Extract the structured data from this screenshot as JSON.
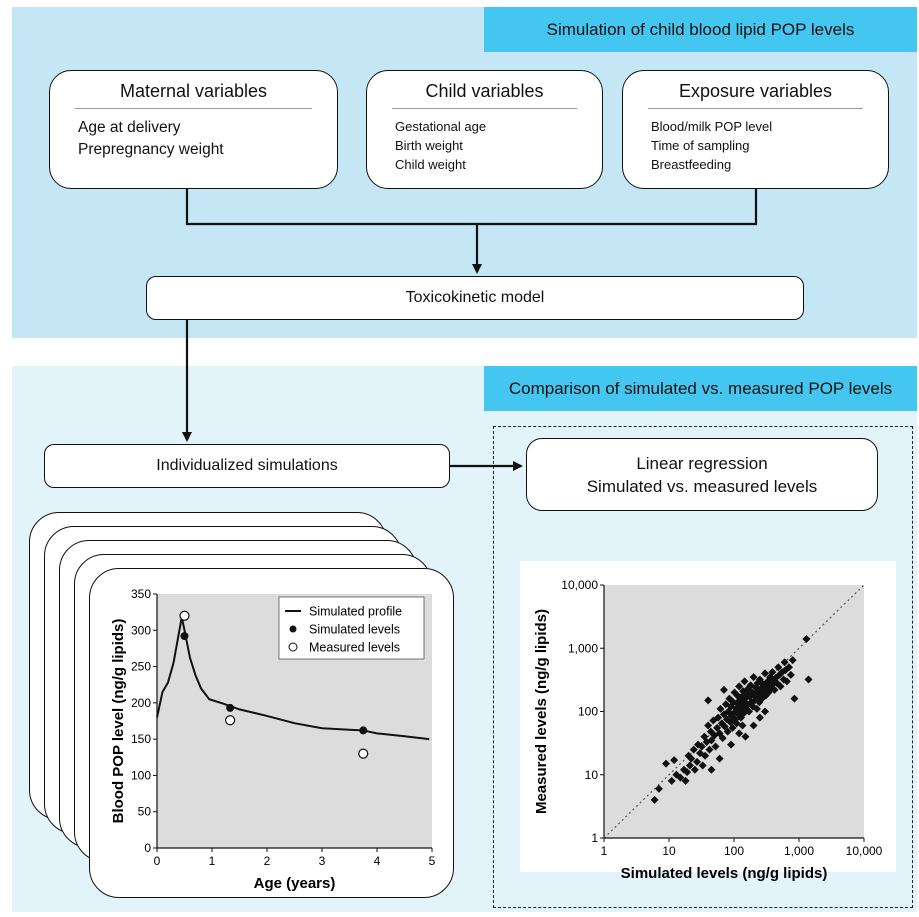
{
  "banners": {
    "top": "Simulation of child blood lipid POP levels",
    "bottom": "Comparison of simulated vs. measured POP levels"
  },
  "maternal": {
    "title": "Maternal variables",
    "items": [
      "Age at delivery",
      "Prepregnancy weight"
    ]
  },
  "child": {
    "title": "Child variables",
    "items": [
      "Gestational age",
      "Birth weight",
      "Child weight"
    ]
  },
  "exposure": {
    "title": "Exposure variables",
    "items": [
      "Blood/milk POP level",
      "Time of sampling",
      "Breastfeeding"
    ]
  },
  "toxicokinetic_label": "Toxicokinetic model",
  "individualized_label": "Individualized simulations",
  "linear_regression": {
    "line1": "Linear regression",
    "line2": "Simulated vs. measured levels"
  },
  "colors": {
    "top_panel": "#c5e6f5",
    "bottom_panel": "#e3f3fa",
    "banner": "#43c6ef",
    "plot_bg": "#dcdcdc"
  },
  "chart_data": [
    {
      "type": "line",
      "xlabel": "Age (years)",
      "ylabel": "Blood POP level (ng/g lipids)",
      "xlim": [
        0,
        5
      ],
      "ylim": [
        0,
        350
      ],
      "xticks": [
        "0",
        "1",
        "2",
        "3",
        "4",
        "5"
      ],
      "yticks": [
        "0",
        "50",
        "100",
        "150",
        "200",
        "250",
        "300",
        "350"
      ],
      "legend": {
        "placement": "top-right",
        "entries": [
          "Simulated profile",
          "Simulated levels",
          "Measured levels"
        ]
      },
      "series": [
        {
          "name": "Simulated profile",
          "x": [
            0,
            0.1,
            0.2,
            0.3,
            0.45,
            0.5,
            0.6,
            0.7,
            0.8,
            0.95,
            1.2,
            1.5,
            2.0,
            2.5,
            3.0,
            3.5,
            3.75,
            4.0,
            4.5,
            4.95
          ],
          "y": [
            180,
            215,
            228,
            255,
            318,
            300,
            262,
            238,
            220,
            205,
            199,
            191,
            182,
            172,
            165,
            163,
            162,
            158,
            154,
            150
          ]
        },
        {
          "name": "Simulated levels",
          "x": [
            0.5,
            1.33,
            3.75
          ],
          "y": [
            292,
            193,
            162
          ]
        },
        {
          "name": "Measured levels",
          "x": [
            0.5,
            1.33,
            3.75
          ],
          "y": [
            320,
            176,
            130
          ]
        }
      ]
    },
    {
      "type": "scatter",
      "xlabel": "Simulated levels (ng/g lipids)",
      "ylabel": "Measured levels (ng/g lipids)",
      "xscale": "log",
      "yscale": "log",
      "xlim": [
        1,
        10000
      ],
      "ylim": [
        1,
        10000
      ],
      "xticks": [
        "1",
        "10",
        "100",
        "1,000",
        "10,000"
      ],
      "yticks": [
        "1",
        "10",
        "100",
        "1,000",
        "10,000"
      ],
      "identity_line": true,
      "points": [
        [
          6,
          4
        ],
        [
          7,
          6
        ],
        [
          9,
          15
        ],
        [
          11,
          8
        ],
        [
          12,
          17
        ],
        [
          13,
          10
        ],
        [
          15,
          9
        ],
        [
          17,
          12
        ],
        [
          18,
          8
        ],
        [
          19,
          11
        ],
        [
          20,
          20
        ],
        [
          21,
          14
        ],
        [
          22,
          18
        ],
        [
          24,
          25
        ],
        [
          25,
          12
        ],
        [
          27,
          16
        ],
        [
          28,
          30
        ],
        [
          30,
          22
        ],
        [
          32,
          28
        ],
        [
          33,
          14
        ],
        [
          35,
          40
        ],
        [
          36,
          20
        ],
        [
          38,
          33
        ],
        [
          40,
          60
        ],
        [
          42,
          25
        ],
        [
          44,
          48
        ],
        [
          45,
          35
        ],
        [
          48,
          72
        ],
        [
          50,
          42
        ],
        [
          52,
          28
        ],
        [
          55,
          55
        ],
        [
          57,
          80
        ],
        [
          60,
          45
        ],
        [
          62,
          110
        ],
        [
          65,
          65
        ],
        [
          67,
          38
        ],
        [
          70,
          90
        ],
        [
          72,
          58
        ],
        [
          75,
          130
        ],
        [
          78,
          75
        ],
        [
          80,
          48
        ],
        [
          82,
          100
        ],
        [
          85,
          160
        ],
        [
          88,
          68
        ],
        [
          90,
          120
        ],
        [
          92,
          85
        ],
        [
          95,
          55
        ],
        [
          98,
          140
        ],
        [
          100,
          95
        ],
        [
          102,
          200
        ],
        [
          105,
          75
        ],
        [
          108,
          110
        ],
        [
          110,
          65
        ],
        [
          112,
          180
        ],
        [
          115,
          130
        ],
        [
          118,
          90
        ],
        [
          120,
          250
        ],
        [
          122,
          150
        ],
        [
          125,
          105
        ],
        [
          128,
          80
        ],
        [
          130,
          170
        ],
        [
          133,
          120
        ],
        [
          135,
          60
        ],
        [
          138,
          210
        ],
        [
          140,
          140
        ],
        [
          143,
          95
        ],
        [
          145,
          300
        ],
        [
          148,
          160
        ],
        [
          150,
          115
        ],
        [
          155,
          190
        ],
        [
          160,
          130
        ],
        [
          165,
          230
        ],
        [
          170,
          100
        ],
        [
          175,
          170
        ],
        [
          180,
          260
        ],
        [
          185,
          140
        ],
        [
          190,
          200
        ],
        [
          195,
          120
        ],
        [
          200,
          350
        ],
        [
          205,
          180
        ],
        [
          210,
          150
        ],
        [
          215,
          240
        ],
        [
          220,
          200
        ],
        [
          225,
          110
        ],
        [
          230,
          280
        ],
        [
          235,
          170
        ],
        [
          240,
          210
        ],
        [
          245,
          140
        ],
        [
          250,
          320
        ],
        [
          255,
          190
        ],
        [
          260,
          230
        ],
        [
          270,
          160
        ],
        [
          280,
          270
        ],
        [
          290,
          210
        ],
        [
          300,
          400
        ],
        [
          310,
          180
        ],
        [
          320,
          250
        ],
        [
          330,
          300
        ],
        [
          340,
          200
        ],
        [
          350,
          280
        ],
        [
          360,
          350
        ],
        [
          370,
          230
        ],
        [
          380,
          260
        ],
        [
          390,
          420
        ],
        [
          400,
          300
        ],
        [
          420,
          220
        ],
        [
          440,
          340
        ],
        [
          460,
          280
        ],
        [
          480,
          500
        ],
        [
          500,
          380
        ],
        [
          520,
          250
        ],
        [
          550,
          420
        ],
        [
          580,
          320
        ],
        [
          600,
          600
        ],
        [
          620,
          450
        ],
        [
          650,
          300
        ],
        [
          700,
          500
        ],
        [
          750,
          380
        ],
        [
          800,
          650
        ],
        [
          850,
          160
        ],
        [
          150,
          40
        ],
        [
          200,
          60
        ],
        [
          300,
          100
        ],
        [
          60,
          18
        ],
        [
          90,
          30
        ],
        [
          45,
          12
        ],
        [
          120,
          45
        ],
        [
          250,
          80
        ],
        [
          40,
          150
        ],
        [
          70,
          220
        ],
        [
          1300,
          1400
        ],
        [
          1400,
          320
        ]
      ]
    }
  ]
}
